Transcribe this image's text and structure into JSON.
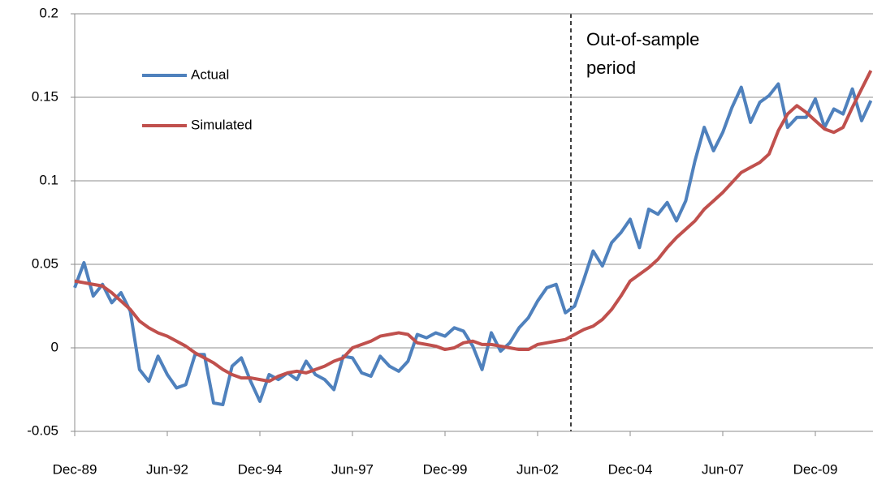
{
  "chart_data": {
    "type": "line",
    "categories": [
      "Dec-89",
      null,
      null,
      null,
      null,
      null,
      null,
      null,
      null,
      null,
      "Jun-92",
      null,
      null,
      null,
      null,
      null,
      null,
      null,
      null,
      null,
      "Dec-94",
      null,
      null,
      null,
      null,
      null,
      null,
      null,
      null,
      null,
      "Jun-97",
      null,
      null,
      null,
      null,
      null,
      null,
      null,
      null,
      null,
      "Dec-99",
      null,
      null,
      null,
      null,
      null,
      null,
      null,
      null,
      null,
      "Jun-02",
      null,
      null,
      null,
      null,
      null,
      null,
      null,
      null,
      null,
      "Dec-04",
      null,
      null,
      null,
      null,
      null,
      null,
      null,
      null,
      null,
      "Jun-07",
      null,
      null,
      null,
      null,
      null,
      null,
      null,
      null,
      null,
      "Dec-09",
      null,
      null,
      null,
      null,
      null,
      null
    ],
    "series": [
      {
        "name": "Actual",
        "color": "#4f81bd",
        "values": [
          0.036,
          0.051,
          0.031,
          0.038,
          0.027,
          0.033,
          0.022,
          -0.013,
          -0.02,
          -0.005,
          -0.016,
          -0.024,
          -0.022,
          -0.004,
          -0.004,
          -0.033,
          -0.034,
          -0.011,
          -0.006,
          -0.02,
          -0.032,
          -0.016,
          -0.019,
          -0.015,
          -0.019,
          -0.008,
          -0.016,
          -0.019,
          -0.025,
          -0.005,
          -0.006,
          -0.015,
          -0.017,
          -0.005,
          -0.011,
          -0.014,
          -0.008,
          0.008,
          0.006,
          0.009,
          0.007,
          0.012,
          0.01,
          0.001,
          -0.013,
          0.009,
          -0.002,
          0.003,
          0.012,
          0.018,
          0.028,
          0.036,
          0.038,
          0.021,
          0.025,
          0.041,
          0.058,
          0.049,
          0.063,
          0.069,
          0.077,
          0.06,
          0.083,
          0.08,
          0.087,
          0.076,
          0.088,
          0.112,
          0.132,
          0.118,
          0.129,
          0.144,
          0.156,
          0.135,
          0.147,
          0.151,
          0.158,
          0.132,
          0.138,
          0.138,
          0.149,
          0.132,
          0.143,
          0.14,
          0.155,
          0.136,
          0.148
        ]
      },
      {
        "name": "Simulated",
        "color": "#c0504d",
        "values": [
          0.04,
          0.039,
          0.038,
          0.037,
          0.033,
          0.028,
          0.023,
          0.016,
          0.012,
          0.009,
          0.007,
          0.004,
          0.001,
          -0.003,
          -0.006,
          -0.009,
          -0.013,
          -0.016,
          -0.018,
          -0.018,
          -0.019,
          -0.02,
          -0.017,
          -0.015,
          -0.014,
          -0.015,
          -0.013,
          -0.011,
          -0.008,
          -0.006,
          0.0,
          0.002,
          0.004,
          0.007,
          0.008,
          0.009,
          0.008,
          0.003,
          0.002,
          0.001,
          -0.001,
          0.0,
          0.003,
          0.004,
          0.002,
          0.002,
          0.001,
          0.0,
          -0.001,
          -0.001,
          0.002,
          0.003,
          0.004,
          0.005,
          0.008,
          0.011,
          0.013,
          0.017,
          0.023,
          0.031,
          0.04,
          0.044,
          0.048,
          0.053,
          0.06,
          0.066,
          0.071,
          0.076,
          0.083,
          0.088,
          0.093,
          0.099,
          0.105,
          0.108,
          0.111,
          0.116,
          0.13,
          0.14,
          0.145,
          0.141,
          0.136,
          0.131,
          0.129,
          0.132,
          0.144,
          0.155,
          0.166
        ]
      }
    ],
    "ylim": [
      -0.05,
      0.2
    ],
    "yticks": [
      {
        "value": -0.05,
        "label": "-0.05"
      },
      0,
      0.05,
      0.1,
      0.15,
      0.2
    ],
    "grid": true,
    "legend": "upper left",
    "annotation": [
      "Out-of-sample",
      "period"
    ]
  }
}
